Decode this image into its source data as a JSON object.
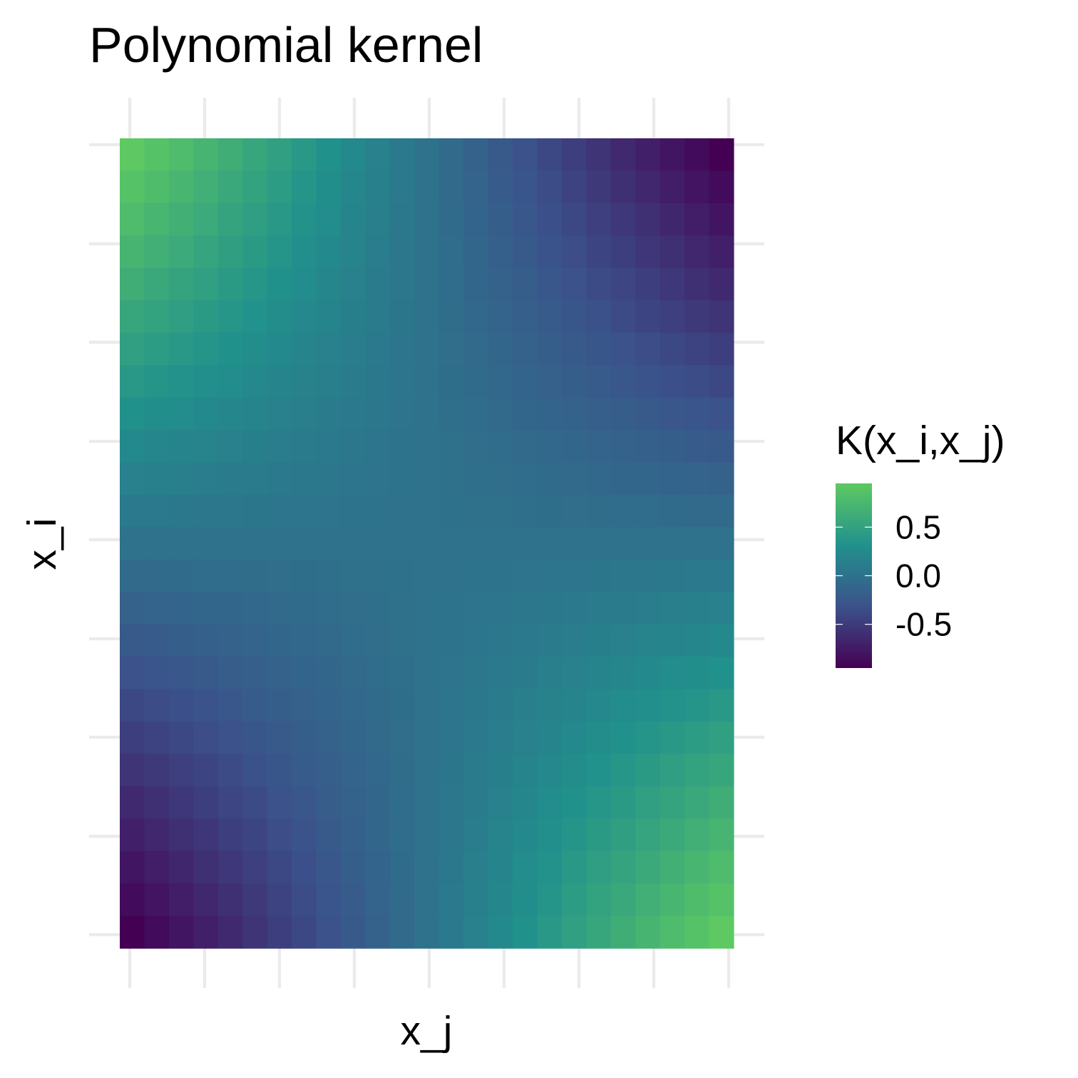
{
  "chart_data": {
    "type": "heatmap",
    "title": "Polynomial kernel",
    "xlabel": "x_j",
    "ylabel": "x_i",
    "grid": true,
    "x_tick_labels": [],
    "y_tick_labels": [],
    "n_cols": 25,
    "n_rows": 25,
    "value_note": "K(x_i, x_j) ≈ -0.95 · u · v, u from -1 (left) to 1 (right), v from -1 (bottom) to 1 (top); top-left and bottom-right corners ≈ 0.95, top-right and bottom-left corners ≈ -0.95",
    "value_range": [
      -0.95,
      0.95
    ],
    "legend": {
      "title": "K(x_i,x_j)",
      "position": "right",
      "breaks": [
        0.5,
        0.0,
        -0.5
      ],
      "labels": [
        "0.5",
        "0.0",
        "-0.5"
      ],
      "colormap": "viridis",
      "colors": [
        "#440154",
        "#3b528b",
        "#21918c",
        "#5ec962"
      ]
    }
  }
}
